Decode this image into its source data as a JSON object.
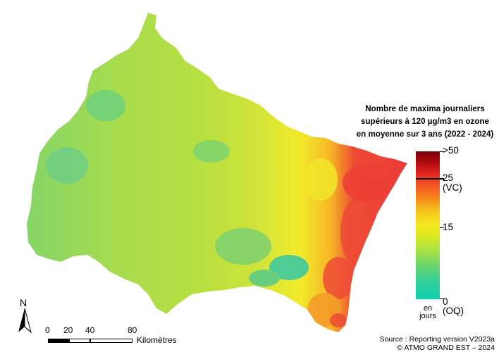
{
  "legend": {
    "title_line1": "Nombre de maxima journaliers",
    "title_line2": "supérieurs à 120 µg/m3 en ozone",
    "title_line3": "en moyenne sur 3 ans (2022 - 2024)",
    "max_label": ">50",
    "vc_value": "25",
    "vc_abbr": "(VC)",
    "mid_label": "15",
    "min_value": "0",
    "min_abbr": "(OQ)",
    "unit_line1": "en",
    "unit_line2": "jours"
  },
  "scale": {
    "labels": [
      "0",
      "20",
      "40",
      "80"
    ],
    "unit": "Kilomètres"
  },
  "north_label": "N",
  "source": {
    "line1": "Source : Reporting version V2023a",
    "line2": "© ATMO GRAND EST – 2024"
  },
  "colors": {
    "low": "#0ed1b1",
    "mid_low": "#6cd56c",
    "mid": "#f4e81e",
    "high": "#f68a1c",
    "very_high": "#e0261e",
    "max": "#7a0007"
  }
}
